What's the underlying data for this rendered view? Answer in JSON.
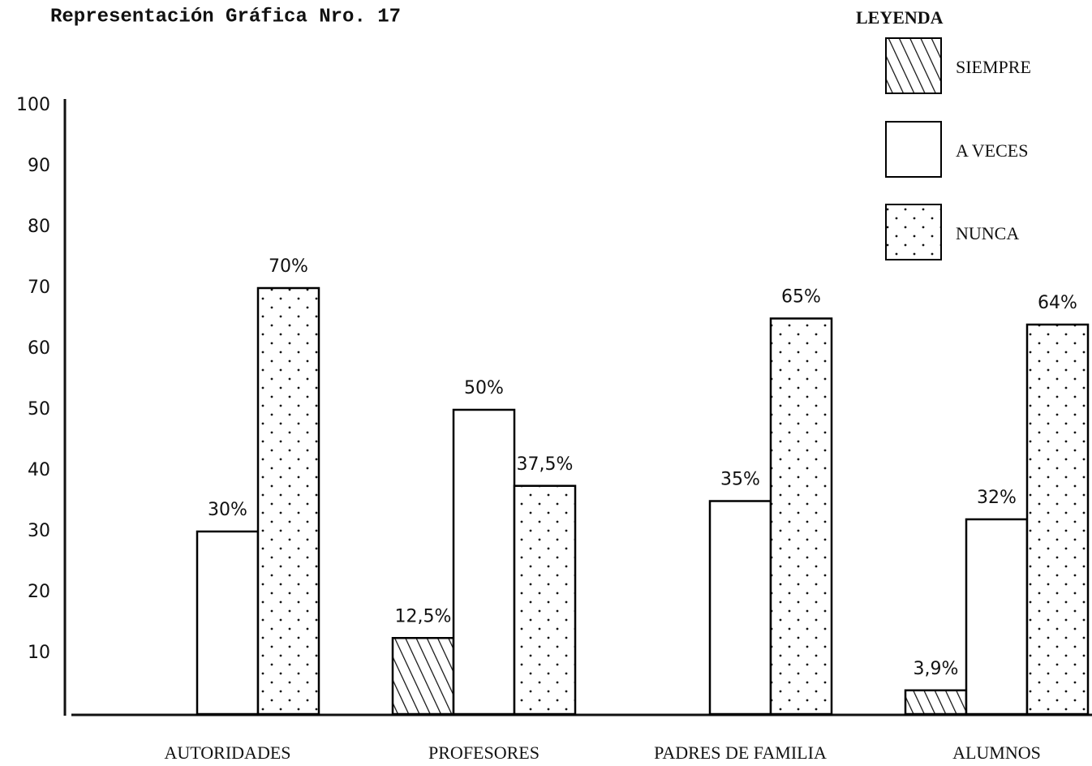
{
  "chart_data": {
    "type": "bar",
    "title": "Representación Gráfica Nro. 17",
    "legend_title": "LEYENDA",
    "categories": [
      "AUTORIDADES",
      "PROFESORES",
      "PADRES DE FAMILIA",
      "ALUMNOS"
    ],
    "series": [
      {
        "name": "SIEMPRE",
        "color": "#000000",
        "pattern": "hatch",
        "values": [
          null,
          12.5,
          null,
          3.9
        ],
        "value_labels": [
          null,
          "12,5%",
          null,
          "3,9%"
        ]
      },
      {
        "name": "A VECES",
        "color": "#000000",
        "pattern": "none",
        "values": [
          30,
          50,
          35,
          32
        ],
        "value_labels": [
          "30%",
          "50%",
          "35%",
          "32%"
        ]
      },
      {
        "name": "NUNCA",
        "color": "#000000",
        "pattern": "dots",
        "values": [
          70,
          37.5,
          65,
          64
        ],
        "value_labels": [
          "70%",
          "37,5%",
          "65%",
          "64%"
        ]
      }
    ],
    "ylim": [
      0,
      100
    ],
    "yticks": [
      10,
      20,
      30,
      40,
      50,
      60,
      70,
      80,
      90,
      100
    ],
    "grid": false,
    "legend": "top-right"
  }
}
